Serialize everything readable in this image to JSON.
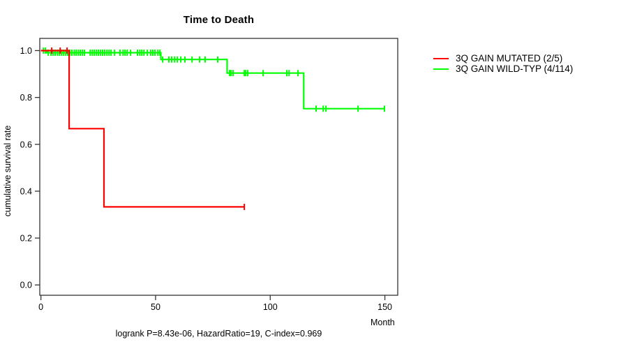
{
  "chart_data": {
    "type": "line",
    "subtype": "kaplan_meier_step",
    "title": "Time to Death",
    "xlabel": "Month",
    "ylabel": "cumulative survival rate",
    "caption": "logrank P=8.43e-06, HazardRatio=19, C-index=0.969",
    "xlim": [
      -0.5,
      155.6
    ],
    "ylim": [
      -0.044,
      1.052
    ],
    "xticks": [
      0,
      50,
      100,
      150
    ],
    "yticks": [
      0.0,
      0.2,
      0.4,
      0.6,
      0.8,
      1.0
    ],
    "grid": false,
    "legend_position": "right-outside",
    "frame_color": "#333333",
    "series": [
      {
        "name": "3Q GAIN MUTATED (2/5)",
        "color": "#ff0000",
        "steps": [
          [
            0,
            1.0
          ],
          [
            12.3,
            1.0
          ],
          [
            12.3,
            0.667
          ],
          [
            27.5,
            0.667
          ],
          [
            27.5,
            0.333
          ],
          [
            88.7,
            0.333
          ]
        ],
        "censor_marks": [
          [
            4.7,
            1.0
          ],
          [
            8.4,
            1.0
          ],
          [
            11.4,
            1.0
          ],
          [
            88.7,
            0.333
          ]
        ]
      },
      {
        "name": "3Q GAIN WILD-TYP (4/114)",
        "color": "#00ff00",
        "steps": [
          [
            0,
            1.0
          ],
          [
            2.5,
            1.0
          ],
          [
            2.5,
            0.991
          ],
          [
            52.3,
            0.991
          ],
          [
            52.3,
            0.962
          ],
          [
            81.2,
            0.962
          ],
          [
            81.2,
            0.904
          ],
          [
            114.6,
            0.904
          ],
          [
            114.6,
            0.752
          ],
          [
            150.1,
            0.752
          ]
        ],
        "censor_marks": [
          [
            1.1,
            1.0
          ],
          [
            2.0,
            1.0
          ],
          [
            3.2,
            0.991
          ],
          [
            4.4,
            0.991
          ],
          [
            5.3,
            0.991
          ],
          [
            6.2,
            0.991
          ],
          [
            7.2,
            0.991
          ],
          [
            8.1,
            0.991
          ],
          [
            9.0,
            0.991
          ],
          [
            9.9,
            0.991
          ],
          [
            10.8,
            0.991
          ],
          [
            11.7,
            0.991
          ],
          [
            12.6,
            0.991
          ],
          [
            13.5,
            0.991
          ],
          [
            14.5,
            0.991
          ],
          [
            15.4,
            0.991
          ],
          [
            16.3,
            0.991
          ],
          [
            17.2,
            0.991
          ],
          [
            18.1,
            0.991
          ],
          [
            19.0,
            0.991
          ],
          [
            21.5,
            0.991
          ],
          [
            22.4,
            0.991
          ],
          [
            23.3,
            0.991
          ],
          [
            24.2,
            0.991
          ],
          [
            25.1,
            0.991
          ],
          [
            26.0,
            0.991
          ],
          [
            26.9,
            0.991
          ],
          [
            27.8,
            0.991
          ],
          [
            28.8,
            0.991
          ],
          [
            29.7,
            0.991
          ],
          [
            30.6,
            0.991
          ],
          [
            32.1,
            0.991
          ],
          [
            34.5,
            0.991
          ],
          [
            35.8,
            0.991
          ],
          [
            36.7,
            0.991
          ],
          [
            37.6,
            0.991
          ],
          [
            39.1,
            0.991
          ],
          [
            42.1,
            0.991
          ],
          [
            43.1,
            0.991
          ],
          [
            44.0,
            0.991
          ],
          [
            44.9,
            0.991
          ],
          [
            46.4,
            0.991
          ],
          [
            47.9,
            0.991
          ],
          [
            48.8,
            0.991
          ],
          [
            49.7,
            0.991
          ],
          [
            51.0,
            0.991
          ],
          [
            51.9,
            0.991
          ],
          [
            53.1,
            0.962
          ],
          [
            55.8,
            0.962
          ],
          [
            57.0,
            0.962
          ],
          [
            58.3,
            0.962
          ],
          [
            59.5,
            0.962
          ],
          [
            61.0,
            0.962
          ],
          [
            62.8,
            0.962
          ],
          [
            65.9,
            0.962
          ],
          [
            69.2,
            0.962
          ],
          [
            71.6,
            0.962
          ],
          [
            77.1,
            0.962
          ],
          [
            82.3,
            0.904
          ],
          [
            82.9,
            0.904
          ],
          [
            83.8,
            0.904
          ],
          [
            88.7,
            0.904
          ],
          [
            89.3,
            0.904
          ],
          [
            90.2,
            0.904
          ],
          [
            96.9,
            0.904
          ],
          [
            107.2,
            0.904
          ],
          [
            108.2,
            0.904
          ],
          [
            112.1,
            0.904
          ],
          [
            120.0,
            0.752
          ],
          [
            123.1,
            0.752
          ],
          [
            124.3,
            0.752
          ],
          [
            138.3,
            0.752
          ],
          [
            149.8,
            0.752
          ]
        ]
      }
    ]
  }
}
